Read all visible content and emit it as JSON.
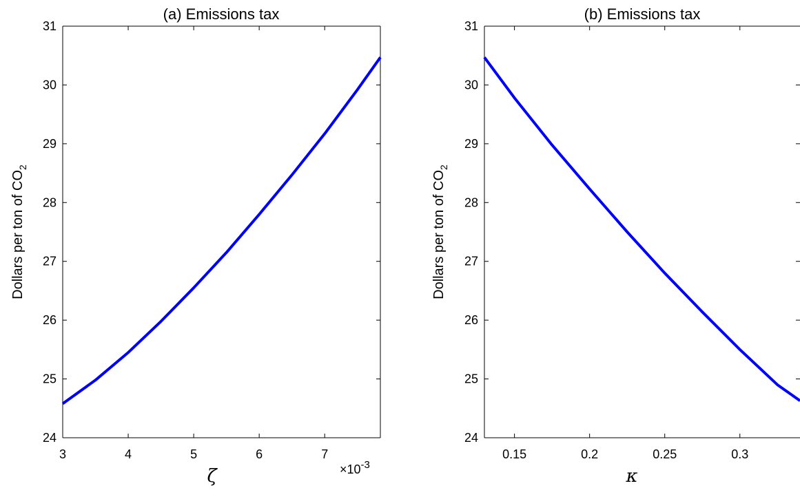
{
  "chart_data": [
    {
      "type": "line",
      "title": "(a) Emissions tax",
      "xlabel": "ζ",
      "x_multiplier": "×10",
      "x_multiplier_exp": "-3",
      "ylabel": "Dollars per ton of CO",
      "ylabel_sub": "2",
      "xlim": [
        3,
        7.85
      ],
      "ylim": [
        24,
        31
      ],
      "xticks": [
        3,
        4,
        5,
        6,
        7
      ],
      "xtick_labels": [
        "3",
        "4",
        "5",
        "6",
        "7"
      ],
      "yticks": [
        24,
        25,
        26,
        27,
        28,
        29,
        30,
        31
      ],
      "ytick_labels": [
        "24",
        "25",
        "26",
        "27",
        "28",
        "29",
        "30",
        "31"
      ],
      "series": [
        {
          "color": "#0000ff",
          "x": [
            3.0,
            3.5,
            4.0,
            4.5,
            5.0,
            5.5,
            6.0,
            6.5,
            7.0,
            7.5,
            7.85
          ],
          "y": [
            24.58,
            24.98,
            25.45,
            25.98,
            26.55,
            27.15,
            27.8,
            28.47,
            29.17,
            29.92,
            30.47
          ]
        }
      ]
    },
    {
      "type": "line",
      "title": "(b) Emissions tax",
      "xlabel": "κ",
      "ylabel": "Dollars per ton of CO",
      "ylabel_sub": "2",
      "xlim": [
        0.13,
        0.34
      ],
      "ylim": [
        24,
        31
      ],
      "xticks": [
        0.15,
        0.2,
        0.25,
        0.3
      ],
      "xtick_labels": [
        "0.15",
        "0.2",
        "0.25",
        "0.3"
      ],
      "yticks": [
        24,
        25,
        26,
        27,
        28,
        29,
        30,
        31
      ],
      "ytick_labels": [
        "24",
        "25",
        "26",
        "27",
        "28",
        "29",
        "30",
        "31"
      ],
      "series": [
        {
          "color": "#0000ff",
          "x": [
            0.13,
            0.15,
            0.175,
            0.2,
            0.225,
            0.25,
            0.275,
            0.3,
            0.325,
            0.34
          ],
          "y": [
            30.47,
            29.78,
            28.98,
            28.23,
            27.5,
            26.8,
            26.14,
            25.5,
            24.9,
            24.63
          ]
        }
      ]
    }
  ]
}
